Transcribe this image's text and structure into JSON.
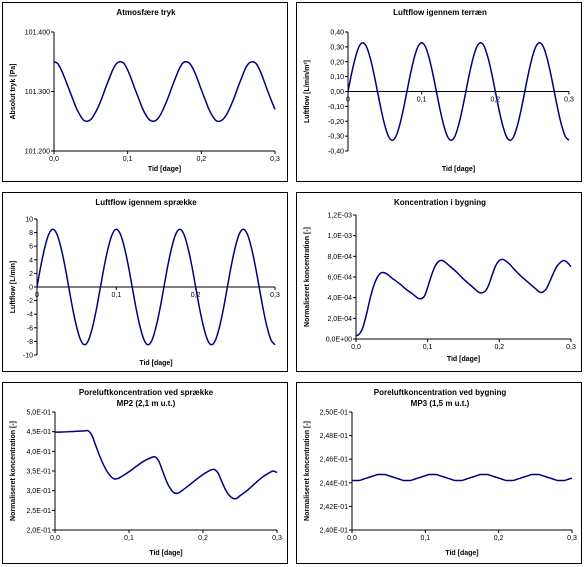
{
  "chart_data": [
    {
      "type": "line",
      "title": "Atmosfære tryk",
      "subtitle": "",
      "xlabel": "Tid [dage]",
      "ylabel": "Absolut tryk [Pa]",
      "xlim": [
        0,
        0.3
      ],
      "ylim": [
        101200,
        101400
      ],
      "xticks": [
        0,
        0.1,
        0.2,
        0.3
      ],
      "xtick_labels": [
        "0,0",
        "0,1",
        "0,2",
        "0,3"
      ],
      "yticks": [
        101200,
        101300,
        101400
      ],
      "ytick_labels": [
        "101.200",
        "101.300",
        "101.400"
      ],
      "grid": false,
      "line_color": "#000080",
      "series": [
        {
          "x": [
            0,
            0.005,
            0.01,
            0.015,
            0.02,
            0.025,
            0.03,
            0.035,
            0.04,
            0.045,
            0.05,
            0.055,
            0.06,
            0.065,
            0.07,
            0.075,
            0.08,
            0.085,
            0.09,
            0.095,
            0.1,
            0.105,
            0.11,
            0.115,
            0.12,
            0.125,
            0.13,
            0.135,
            0.14,
            0.145,
            0.15,
            0.155,
            0.16,
            0.165,
            0.17,
            0.175,
            0.18,
            0.185,
            0.19,
            0.195,
            0.2,
            0.205,
            0.21,
            0.215,
            0.22,
            0.225,
            0.23,
            0.235,
            0.24,
            0.245,
            0.25,
            0.255,
            0.26,
            0.265,
            0.27,
            0.275,
            0.28,
            0.285,
            0.29,
            0.295,
            0.3
          ],
          "values": [
            101350,
            101347,
            101336,
            101321,
            101305,
            101289,
            101273,
            101261,
            101252,
            101250,
            101253,
            101262,
            101274,
            101289,
            101306,
            101322,
            101337,
            101347,
            101350,
            101347,
            101336,
            101321,
            101304,
            101288,
            101272,
            101260,
            101252,
            101250,
            101253,
            101262,
            101275,
            101290,
            101307,
            101323,
            101338,
            101348,
            101350,
            101346,
            101335,
            101320,
            101303,
            101287,
            101271,
            101259,
            101251,
            101250,
            101254,
            101263,
            101276,
            101291,
            101308,
            101324,
            101339,
            101348,
            101350,
            101346,
            101334,
            101318,
            101301,
            101285,
            101270
          ]
        }
      ]
    },
    {
      "type": "line",
      "title": "Luftflow igennem terræn",
      "subtitle": "",
      "xlabel": "Tid [dage]",
      "ylabel": "Luftflow [L/min/m²]",
      "xlim": [
        0,
        0.3
      ],
      "ylim": [
        -0.4,
        0.4
      ],
      "xticks": [
        0,
        0.1,
        0.2,
        0.3
      ],
      "xtick_labels": [
        "0",
        "0,1",
        "0,2",
        "0,3"
      ],
      "yticks": [
        -0.4,
        -0.3,
        -0.2,
        -0.1,
        0,
        0.1,
        0.2,
        0.3,
        0.4
      ],
      "ytick_labels": [
        "-0,40",
        "-0,30",
        "-0,20",
        "-0,10",
        "0,00",
        "0,10",
        "0,20",
        "0,30",
        "0,40"
      ],
      "grid": false,
      "line_color": "#000080",
      "series": [
        {
          "x": [
            0,
            0.005,
            0.01,
            0.015,
            0.02,
            0.025,
            0.03,
            0.035,
            0.04,
            0.045,
            0.05,
            0.055,
            0.06,
            0.065,
            0.07,
            0.075,
            0.08,
            0.085,
            0.09,
            0.095,
            0.1,
            0.105,
            0.11,
            0.115,
            0.12,
            0.125,
            0.13,
            0.135,
            0.14,
            0.145,
            0.15,
            0.155,
            0.16,
            0.165,
            0.17,
            0.175,
            0.18,
            0.185,
            0.19,
            0.195,
            0.2,
            0.205,
            0.21,
            0.215,
            0.22,
            0.225,
            0.23,
            0.235,
            0.24,
            0.245,
            0.25,
            0.255,
            0.26,
            0.265,
            0.27,
            0.275,
            0.28,
            0.285,
            0.29,
            0.295,
            0.3
          ],
          "values": [
            0,
            0.123,
            0.228,
            0.302,
            0.328,
            0.302,
            0.228,
            0.123,
            0.0,
            -0.123,
            -0.228,
            -0.302,
            -0.328,
            -0.302,
            -0.228,
            -0.123,
            0.0,
            0.123,
            0.228,
            0.302,
            0.328,
            0.302,
            0.228,
            0.123,
            0.0,
            -0.123,
            -0.228,
            -0.302,
            -0.328,
            -0.302,
            -0.228,
            -0.123,
            0.0,
            0.123,
            0.228,
            0.302,
            0.328,
            0.302,
            0.228,
            0.123,
            0.0,
            -0.123,
            -0.228,
            -0.302,
            -0.328,
            -0.302,
            -0.228,
            -0.123,
            0.0,
            0.123,
            0.228,
            0.302,
            0.328,
            0.302,
            0.228,
            0.123,
            0.0,
            -0.123,
            -0.228,
            -0.302,
            -0.328
          ]
        }
      ]
    },
    {
      "type": "line",
      "title": "Luftflow igennem sprække",
      "subtitle": "",
      "xlabel": "Tid [dage]",
      "ylabel": "Luftflow [L/min]",
      "xlim": [
        0,
        0.3
      ],
      "ylim": [
        -10,
        10
      ],
      "xticks": [
        0,
        0.1,
        0.2,
        0.3
      ],
      "xtick_labels": [
        "0",
        "0,1",
        "0,2",
        "0,3"
      ],
      "yticks": [
        -10,
        -8,
        -6,
        -4,
        -2,
        0,
        2,
        4,
        6,
        8,
        10
      ],
      "ytick_labels": [
        "-10",
        "-8",
        "-6",
        "-4",
        "-2",
        "0",
        "2",
        "4",
        "6",
        "8",
        "10"
      ],
      "grid": false,
      "line_color": "#000080",
      "series": [
        {
          "x": [
            0,
            0.005,
            0.01,
            0.015,
            0.02,
            0.025,
            0.03,
            0.035,
            0.04,
            0.045,
            0.05,
            0.055,
            0.06,
            0.065,
            0.07,
            0.075,
            0.08,
            0.085,
            0.09,
            0.095,
            0.1,
            0.105,
            0.11,
            0.115,
            0.12,
            0.125,
            0.13,
            0.135,
            0.14,
            0.145,
            0.15,
            0.155,
            0.16,
            0.165,
            0.17,
            0.175,
            0.18,
            0.185,
            0.19,
            0.195,
            0.2,
            0.205,
            0.21,
            0.215,
            0.22,
            0.225,
            0.23,
            0.235,
            0.24,
            0.245,
            0.25,
            0.255,
            0.26,
            0.265,
            0.27,
            0.275,
            0.28,
            0.285,
            0.29,
            0.295,
            0.3
          ],
          "values": [
            0,
            3.2,
            5.9,
            7.8,
            8.5,
            7.8,
            5.9,
            3.2,
            0.0,
            -3.2,
            -5.9,
            -7.8,
            -8.5,
            -7.8,
            -5.9,
            -3.2,
            0.0,
            3.2,
            5.9,
            7.8,
            8.5,
            7.8,
            5.9,
            3.2,
            0.0,
            -3.2,
            -5.9,
            -7.8,
            -8.5,
            -7.8,
            -5.9,
            -3.2,
            0.0,
            3.2,
            5.9,
            7.8,
            8.5,
            7.8,
            5.9,
            3.2,
            0.0,
            -3.2,
            -5.9,
            -7.8,
            -8.5,
            -7.8,
            -5.9,
            -3.2,
            0.0,
            3.2,
            5.9,
            7.8,
            8.5,
            7.8,
            5.9,
            3.2,
            0.0,
            -3.2,
            -5.9,
            -7.8,
            -8.5
          ]
        }
      ]
    },
    {
      "type": "line",
      "title": "Koncentration i bygning",
      "subtitle": "",
      "xlabel": "Tid [dage]",
      "ylabel": "Normaliseret koncentration [-]",
      "xlim": [
        0,
        0.3
      ],
      "ylim": [
        0,
        0.0012
      ],
      "xticks": [
        0,
        0.1,
        0.2,
        0.3
      ],
      "xtick_labels": [
        "0,0",
        "0,1",
        "0,2",
        "0,3"
      ],
      "yticks": [
        0,
        0.0002,
        0.0004,
        0.0006,
        0.0008,
        0.001,
        0.0012
      ],
      "ytick_labels": [
        "0,0E+00",
        "2,0E-04",
        "4,0E-04",
        "6,0E-04",
        "8,0E-04",
        "1,0E-03",
        "1,2E-03"
      ],
      "grid": false,
      "line_color": "#000080",
      "series": [
        {
          "x": [
            0,
            0.005,
            0.01,
            0.015,
            0.02,
            0.025,
            0.03,
            0.035,
            0.04,
            0.045,
            0.05,
            0.06,
            0.07,
            0.08,
            0.088,
            0.095,
            0.1,
            0.105,
            0.11,
            0.115,
            0.12,
            0.125,
            0.13,
            0.14,
            0.15,
            0.16,
            0.172,
            0.18,
            0.185,
            0.19,
            0.195,
            0.2,
            0.205,
            0.21,
            0.215,
            0.22,
            0.23,
            0.24,
            0.25,
            0.258,
            0.265,
            0.27,
            0.275,
            0.28,
            0.285,
            0.29,
            0.295,
            0.3
          ],
          "values": [
            3e-05,
            5e-05,
            0.00012,
            0.00025,
            0.0004,
            0.00052,
            0.0006,
            0.00064,
            0.00064,
            0.00062,
            0.00059,
            0.00054,
            0.00048,
            0.00043,
            0.00039,
            0.00041,
            0.0005,
            0.00061,
            0.0007,
            0.00075,
            0.00076,
            0.00074,
            0.00071,
            0.00065,
            0.00058,
            0.00052,
            0.00045,
            0.00046,
            0.00052,
            0.00062,
            0.00071,
            0.00076,
            0.00077,
            0.00075,
            0.00072,
            0.00068,
            0.00061,
            0.00055,
            0.00049,
            0.00045,
            0.00048,
            0.00055,
            0.00063,
            0.0007,
            0.00074,
            0.00076,
            0.00074,
            0.0007
          ]
        }
      ]
    },
    {
      "type": "line",
      "title": "Poreluftkoncentration ved sprække",
      "subtitle": "MP2 (2,1 m u.t.)",
      "xlabel": "Tid [dage]",
      "ylabel": "Normaliseret koncentration [-]",
      "xlim": [
        0,
        0.3
      ],
      "ylim": [
        0.2,
        0.5
      ],
      "xticks": [
        0,
        0.1,
        0.2,
        0.3
      ],
      "xtick_labels": [
        "0,0",
        "0,1",
        "0,2",
        "0,3"
      ],
      "yticks": [
        0.2,
        0.25,
        0.3,
        0.35,
        0.4,
        0.45,
        0.5
      ],
      "ytick_labels": [
        "2,0E-01",
        "2,5E-01",
        "3,0E-01",
        "3,5E-01",
        "4,0E-01",
        "4,5E-01",
        "5,0E-01"
      ],
      "grid": false,
      "line_color": "#000080",
      "series": [
        {
          "x": [
            0,
            0.01,
            0.02,
            0.03,
            0.04,
            0.045,
            0.05,
            0.055,
            0.06,
            0.065,
            0.07,
            0.075,
            0.08,
            0.085,
            0.09,
            0.1,
            0.11,
            0.12,
            0.13,
            0.135,
            0.14,
            0.145,
            0.15,
            0.155,
            0.16,
            0.165,
            0.17,
            0.18,
            0.19,
            0.2,
            0.21,
            0.215,
            0.22,
            0.225,
            0.23,
            0.235,
            0.24,
            0.245,
            0.25,
            0.26,
            0.27,
            0.28,
            0.29,
            0.295,
            0.3
          ],
          "values": [
            0.449,
            0.449,
            0.45,
            0.451,
            0.452,
            0.452,
            0.44,
            0.415,
            0.39,
            0.368,
            0.35,
            0.337,
            0.33,
            0.331,
            0.336,
            0.348,
            0.362,
            0.375,
            0.384,
            0.386,
            0.376,
            0.352,
            0.327,
            0.308,
            0.296,
            0.293,
            0.298,
            0.312,
            0.327,
            0.341,
            0.352,
            0.354,
            0.346,
            0.325,
            0.304,
            0.289,
            0.281,
            0.28,
            0.287,
            0.301,
            0.318,
            0.334,
            0.346,
            0.35,
            0.346
          ]
        }
      ]
    },
    {
      "type": "line",
      "title": "Poreluftkoncentration ved bygning",
      "subtitle": "MP3 (1,5 m u.t.)",
      "xlabel": "Tid [dage]",
      "ylabel": "Normaliseret koncentration [-]",
      "xlim": [
        0,
        0.3
      ],
      "ylim": [
        0.24,
        0.25
      ],
      "xticks": [
        0,
        0.1,
        0.2,
        0.3
      ],
      "xtick_labels": [
        "0,0",
        "0,1",
        "0,2",
        "0,3"
      ],
      "yticks": [
        0.24,
        0.242,
        0.244,
        0.246,
        0.248,
        0.25
      ],
      "ytick_labels": [
        "2,40E-01",
        "2,42E-01",
        "2,44E-01",
        "2,46E-01",
        "2,48E-01",
        "2,50E-01"
      ],
      "grid": false,
      "line_color": "#000080",
      "series": [
        {
          "x": [
            0,
            0.005,
            0.01,
            0.015,
            0.02,
            0.025,
            0.03,
            0.035,
            0.04,
            0.045,
            0.05,
            0.055,
            0.06,
            0.065,
            0.07,
            0.075,
            0.08,
            0.085,
            0.09,
            0.095,
            0.1,
            0.105,
            0.11,
            0.115,
            0.12,
            0.125,
            0.13,
            0.135,
            0.14,
            0.145,
            0.15,
            0.155,
            0.16,
            0.165,
            0.17,
            0.175,
            0.18,
            0.185,
            0.19,
            0.195,
            0.2,
            0.205,
            0.21,
            0.215,
            0.22,
            0.225,
            0.23,
            0.235,
            0.24,
            0.245,
            0.25,
            0.255,
            0.26,
            0.265,
            0.27,
            0.275,
            0.28,
            0.285,
            0.29,
            0.295,
            0.3
          ],
          "values": [
            0.2442,
            0.2442,
            0.2442,
            0.2443,
            0.2444,
            0.2445,
            0.2446,
            0.2447,
            0.2447,
            0.2447,
            0.2446,
            0.2445,
            0.2444,
            0.2443,
            0.2442,
            0.2442,
            0.2442,
            0.2443,
            0.2444,
            0.2445,
            0.2446,
            0.2447,
            0.2447,
            0.2447,
            0.2446,
            0.2445,
            0.2444,
            0.2443,
            0.2442,
            0.2442,
            0.2442,
            0.2443,
            0.2444,
            0.2445,
            0.2446,
            0.2447,
            0.2447,
            0.2447,
            0.2446,
            0.2445,
            0.2444,
            0.2443,
            0.2442,
            0.2442,
            0.2442,
            0.2443,
            0.2444,
            0.2445,
            0.2446,
            0.2447,
            0.2447,
            0.2447,
            0.2446,
            0.2445,
            0.2444,
            0.2443,
            0.2442,
            0.2442,
            0.2442,
            0.2443,
            0.2444
          ]
        }
      ]
    }
  ]
}
